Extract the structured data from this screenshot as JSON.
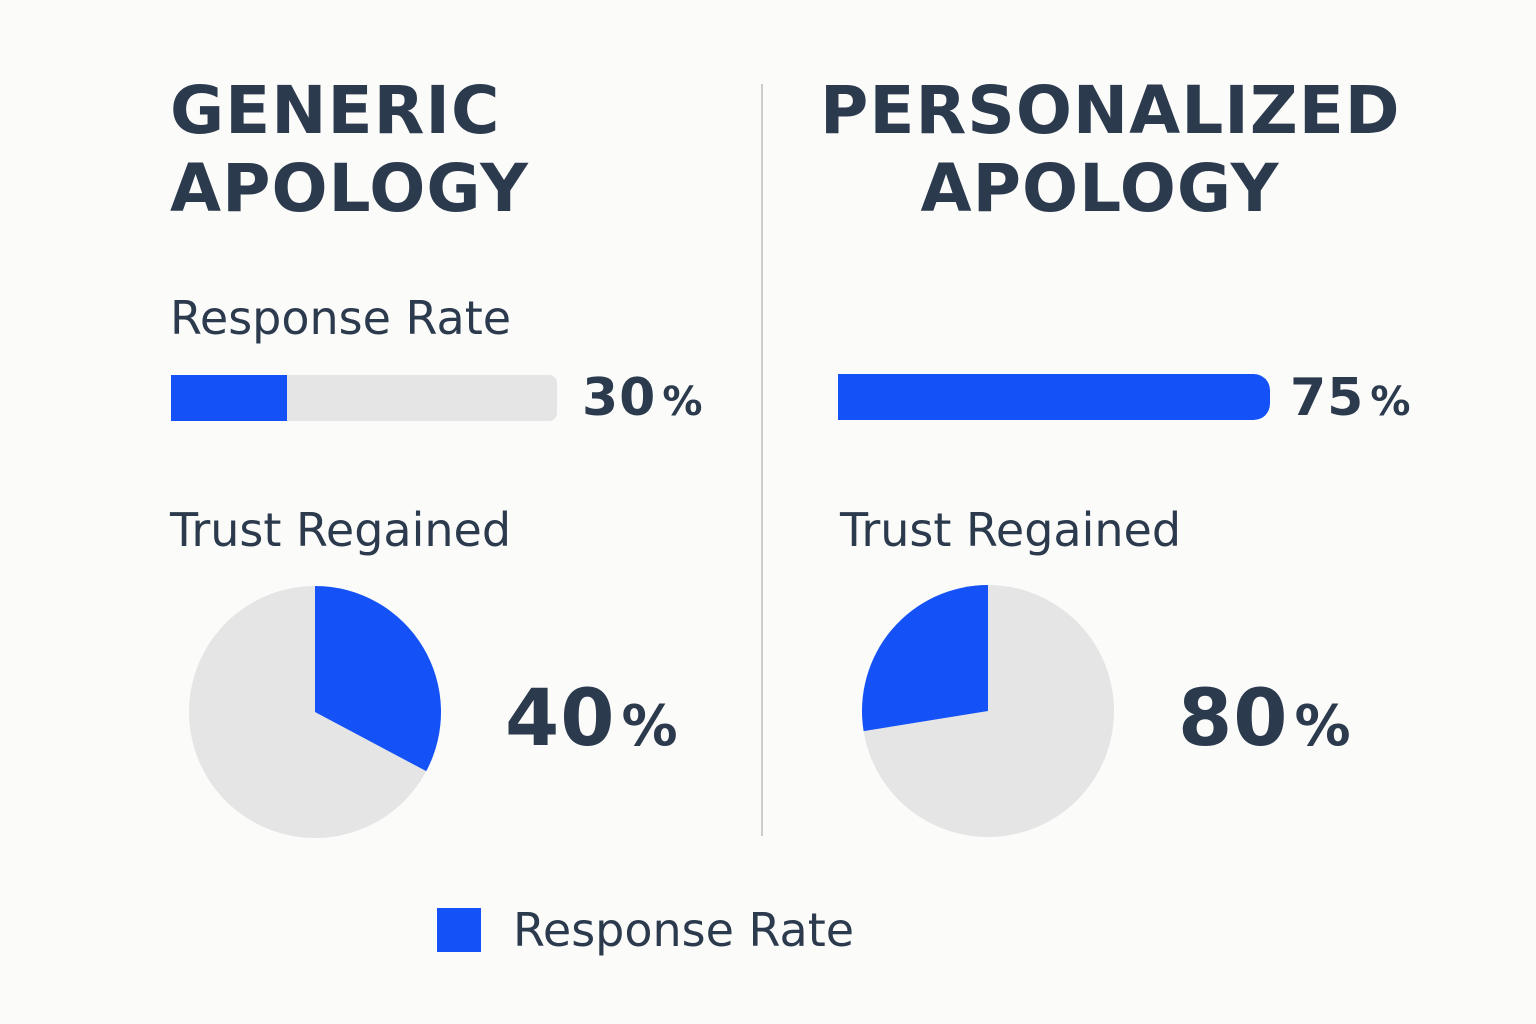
{
  "colors": {
    "accent": "#1452f8",
    "track": "#e5e5e5",
    "text": "#2c3a4d",
    "divider": "#cdcdcd"
  },
  "panels": {
    "left": {
      "title_line1": "GENERIC",
      "title_line2": "APOLOGY",
      "response_label": "Response Rate",
      "response_value": "30",
      "response_unit": "%",
      "trust_label": "Trust Regained",
      "trust_value": "40",
      "trust_unit": "%"
    },
    "right": {
      "title_line1": "PERSONALIZED",
      "title_line2": "APOLOGY",
      "response_value": "75",
      "response_unit": "%",
      "trust_label": "Trust Regained",
      "trust_value": "80",
      "trust_unit": "%"
    }
  },
  "legend": {
    "label": "Response Rate"
  },
  "chart_data": [
    {
      "type": "bar",
      "orientation": "horizontal",
      "categories": [
        "GENERIC APOLOGY"
      ],
      "values": [
        30
      ],
      "ylabel": "Response Rate",
      "ylim": [
        0,
        100
      ],
      "grid": false
    },
    {
      "type": "bar",
      "orientation": "horizontal",
      "categories": [
        "PERSONALIZED APOLOGY"
      ],
      "values": [
        75
      ],
      "ylim": [
        0,
        100
      ],
      "grid": false
    },
    {
      "type": "pie",
      "title": "Trust Regained",
      "categories": [
        "GENERIC APOLOGY"
      ],
      "values": [
        40
      ]
    },
    {
      "type": "pie",
      "title": "Trust Regained",
      "categories": [
        "PERSONALIZED APOLOGY"
      ],
      "values": [
        80
      ]
    }
  ]
}
